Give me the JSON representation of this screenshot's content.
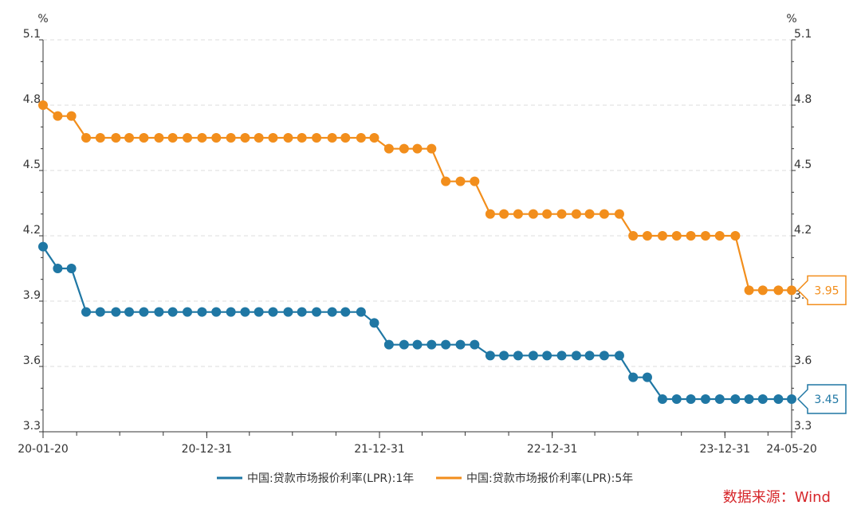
{
  "chart_data": {
    "type": "line",
    "ylabel_left": "%",
    "ylabel_right": "%",
    "ylim": [
      3.3,
      5.1
    ],
    "yticks": [
      3.3,
      3.6,
      3.9,
      4.2,
      4.5,
      4.8,
      5.1
    ],
    "ytick_labels": [
      "3.3",
      "3.6",
      "3.9",
      "4.2",
      "4.5",
      "4.8",
      "5.1"
    ],
    "xlim": [
      "2020-01-20",
      "2024-05-20"
    ],
    "xtick_labels": [
      {
        "label": "20-01-20",
        "date": "2020-01-20"
      },
      {
        "label": "20-12-31",
        "date": "2020-12-31"
      },
      {
        "label": "21-12-31",
        "date": "2021-12-31"
      },
      {
        "label": "22-12-31",
        "date": "2022-12-31"
      },
      {
        "label": "23-12-31",
        "date": "2023-12-31"
      },
      {
        "label": "24-05-20",
        "date": "2024-05-20"
      }
    ],
    "grid": true,
    "legend_position": "bottom",
    "dates": [
      "2020-01-20",
      "2020-02-20",
      "2020-03-20",
      "2020-04-20",
      "2020-05-20",
      "2020-06-22",
      "2020-07-20",
      "2020-08-20",
      "2020-09-21",
      "2020-10-20",
      "2020-11-20",
      "2020-12-21",
      "2021-01-20",
      "2021-02-20",
      "2021-03-22",
      "2021-04-20",
      "2021-05-20",
      "2021-06-21",
      "2021-07-20",
      "2021-08-20",
      "2021-09-22",
      "2021-10-20",
      "2021-11-22",
      "2021-12-20",
      "2022-01-20",
      "2022-02-21",
      "2022-03-21",
      "2022-04-20",
      "2022-05-20",
      "2022-06-20",
      "2022-07-20",
      "2022-08-22",
      "2022-09-20",
      "2022-10-20",
      "2022-11-21",
      "2022-12-20",
      "2023-01-20",
      "2023-02-20",
      "2023-03-20",
      "2023-04-20",
      "2023-05-22",
      "2023-06-20",
      "2023-07-20",
      "2023-08-21",
      "2023-09-20",
      "2023-10-20",
      "2023-11-20",
      "2023-12-20",
      "2024-01-22",
      "2024-02-20",
      "2024-03-20",
      "2024-04-22",
      "2024-05-20"
    ],
    "series": [
      {
        "name": "中国:贷款市场报价利率(LPR):1年",
        "color": "#1f77a4",
        "end_label": "3.45",
        "values": [
          4.15,
          4.05,
          4.05,
          3.85,
          3.85,
          3.85,
          3.85,
          3.85,
          3.85,
          3.85,
          3.85,
          3.85,
          3.85,
          3.85,
          3.85,
          3.85,
          3.85,
          3.85,
          3.85,
          3.85,
          3.85,
          3.85,
          3.85,
          3.8,
          3.7,
          3.7,
          3.7,
          3.7,
          3.7,
          3.7,
          3.7,
          3.65,
          3.65,
          3.65,
          3.65,
          3.65,
          3.65,
          3.65,
          3.65,
          3.65,
          3.65,
          3.55,
          3.55,
          3.45,
          3.45,
          3.45,
          3.45,
          3.45,
          3.45,
          3.45,
          3.45,
          3.45,
          3.45
        ]
      },
      {
        "name": "中国:贷款市场报价利率(LPR):5年",
        "color": "#f28e1c",
        "end_label": "3.95",
        "values": [
          4.8,
          4.75,
          4.75,
          4.65,
          4.65,
          4.65,
          4.65,
          4.65,
          4.65,
          4.65,
          4.65,
          4.65,
          4.65,
          4.65,
          4.65,
          4.65,
          4.65,
          4.65,
          4.65,
          4.65,
          4.65,
          4.65,
          4.65,
          4.65,
          4.6,
          4.6,
          4.6,
          4.6,
          4.45,
          4.45,
          4.45,
          4.3,
          4.3,
          4.3,
          4.3,
          4.3,
          4.3,
          4.3,
          4.3,
          4.3,
          4.3,
          4.2,
          4.2,
          4.2,
          4.2,
          4.2,
          4.2,
          4.2,
          4.2,
          3.95,
          3.95,
          3.95,
          3.95
        ]
      }
    ]
  },
  "source": "数据来源：Wind"
}
